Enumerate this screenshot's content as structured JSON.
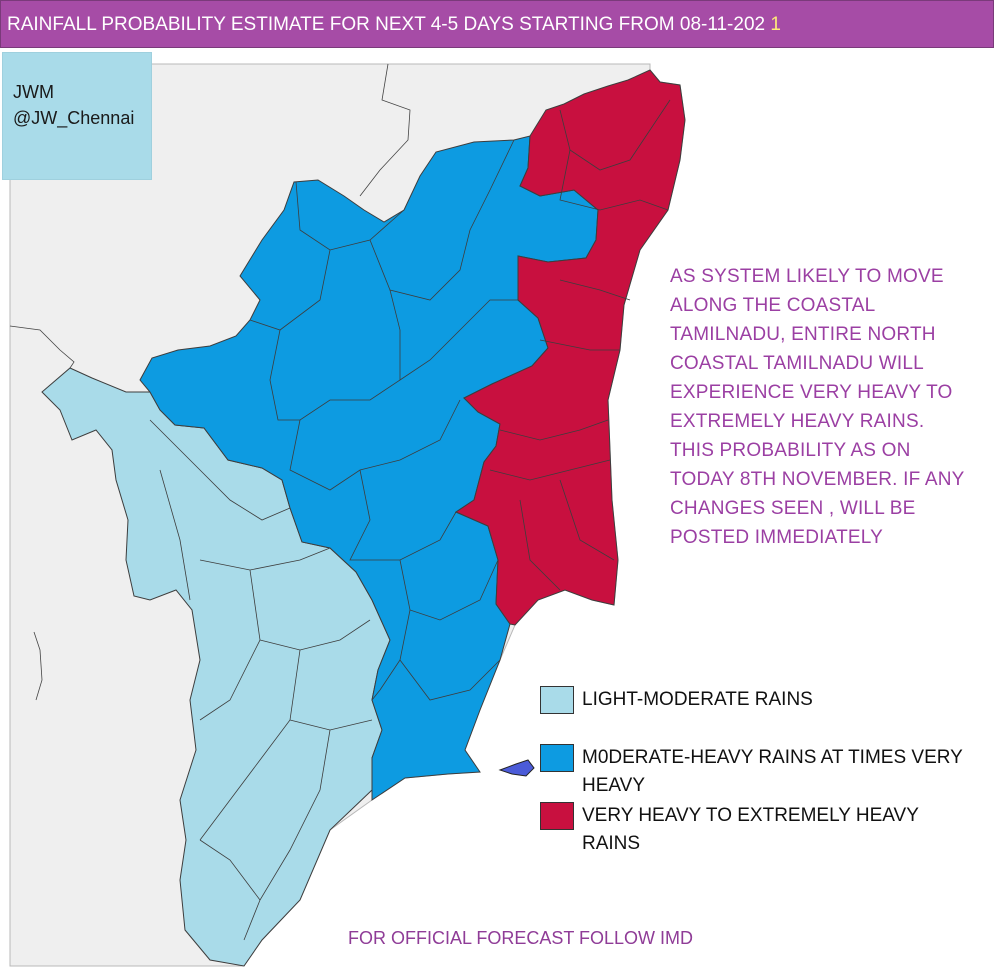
{
  "title": {
    "main": "RAINFALL PROBABILITY ESTIMATE FOR NEXT 4-5 DAYS STARTING FROM 08-11-202",
    "suffix": " 1"
  },
  "credit": {
    "line1": "JWM",
    "line2": "@JW_Chennai"
  },
  "note": "AS SYSTEM LIKELY TO MOVE ALONG THE COASTAL TAMILNADU, ENTIRE NORTH COASTAL TAMILNADU WILL EXPERIENCE VERY HEAVY TO EXTREMELY HEAVY RAINS. THIS PROBABILITY AS ON TODAY 8TH NOVEMBER. IF ANY CHANGES SEEN , WILL BE POSTED IMMEDIATELY",
  "legend": [
    {
      "label": "LIGHT-MODERATE RAINS",
      "color": "#a9dbe9"
    },
    {
      "label": "M0DERATE-HEAVY RAINS AT TIMES VERY HEAVY",
      "color": "#0d9be1"
    },
    {
      "label": "VERY HEAVY TO EXTREMELY HEAVY RAINS",
      "color": "#c8103f"
    }
  ],
  "footer": "FOR OFFICIAL FORECAST FOLLOW IMD",
  "colors": {
    "title_bg": "#a64ca6",
    "note_text": "#9b3fa3",
    "neighbour_land": "#efefef",
    "light_moderate": "#a9dbe9",
    "moderate_heavy": "#0d9be1",
    "very_heavy": "#c8103f",
    "island": "#4b5bd8"
  }
}
